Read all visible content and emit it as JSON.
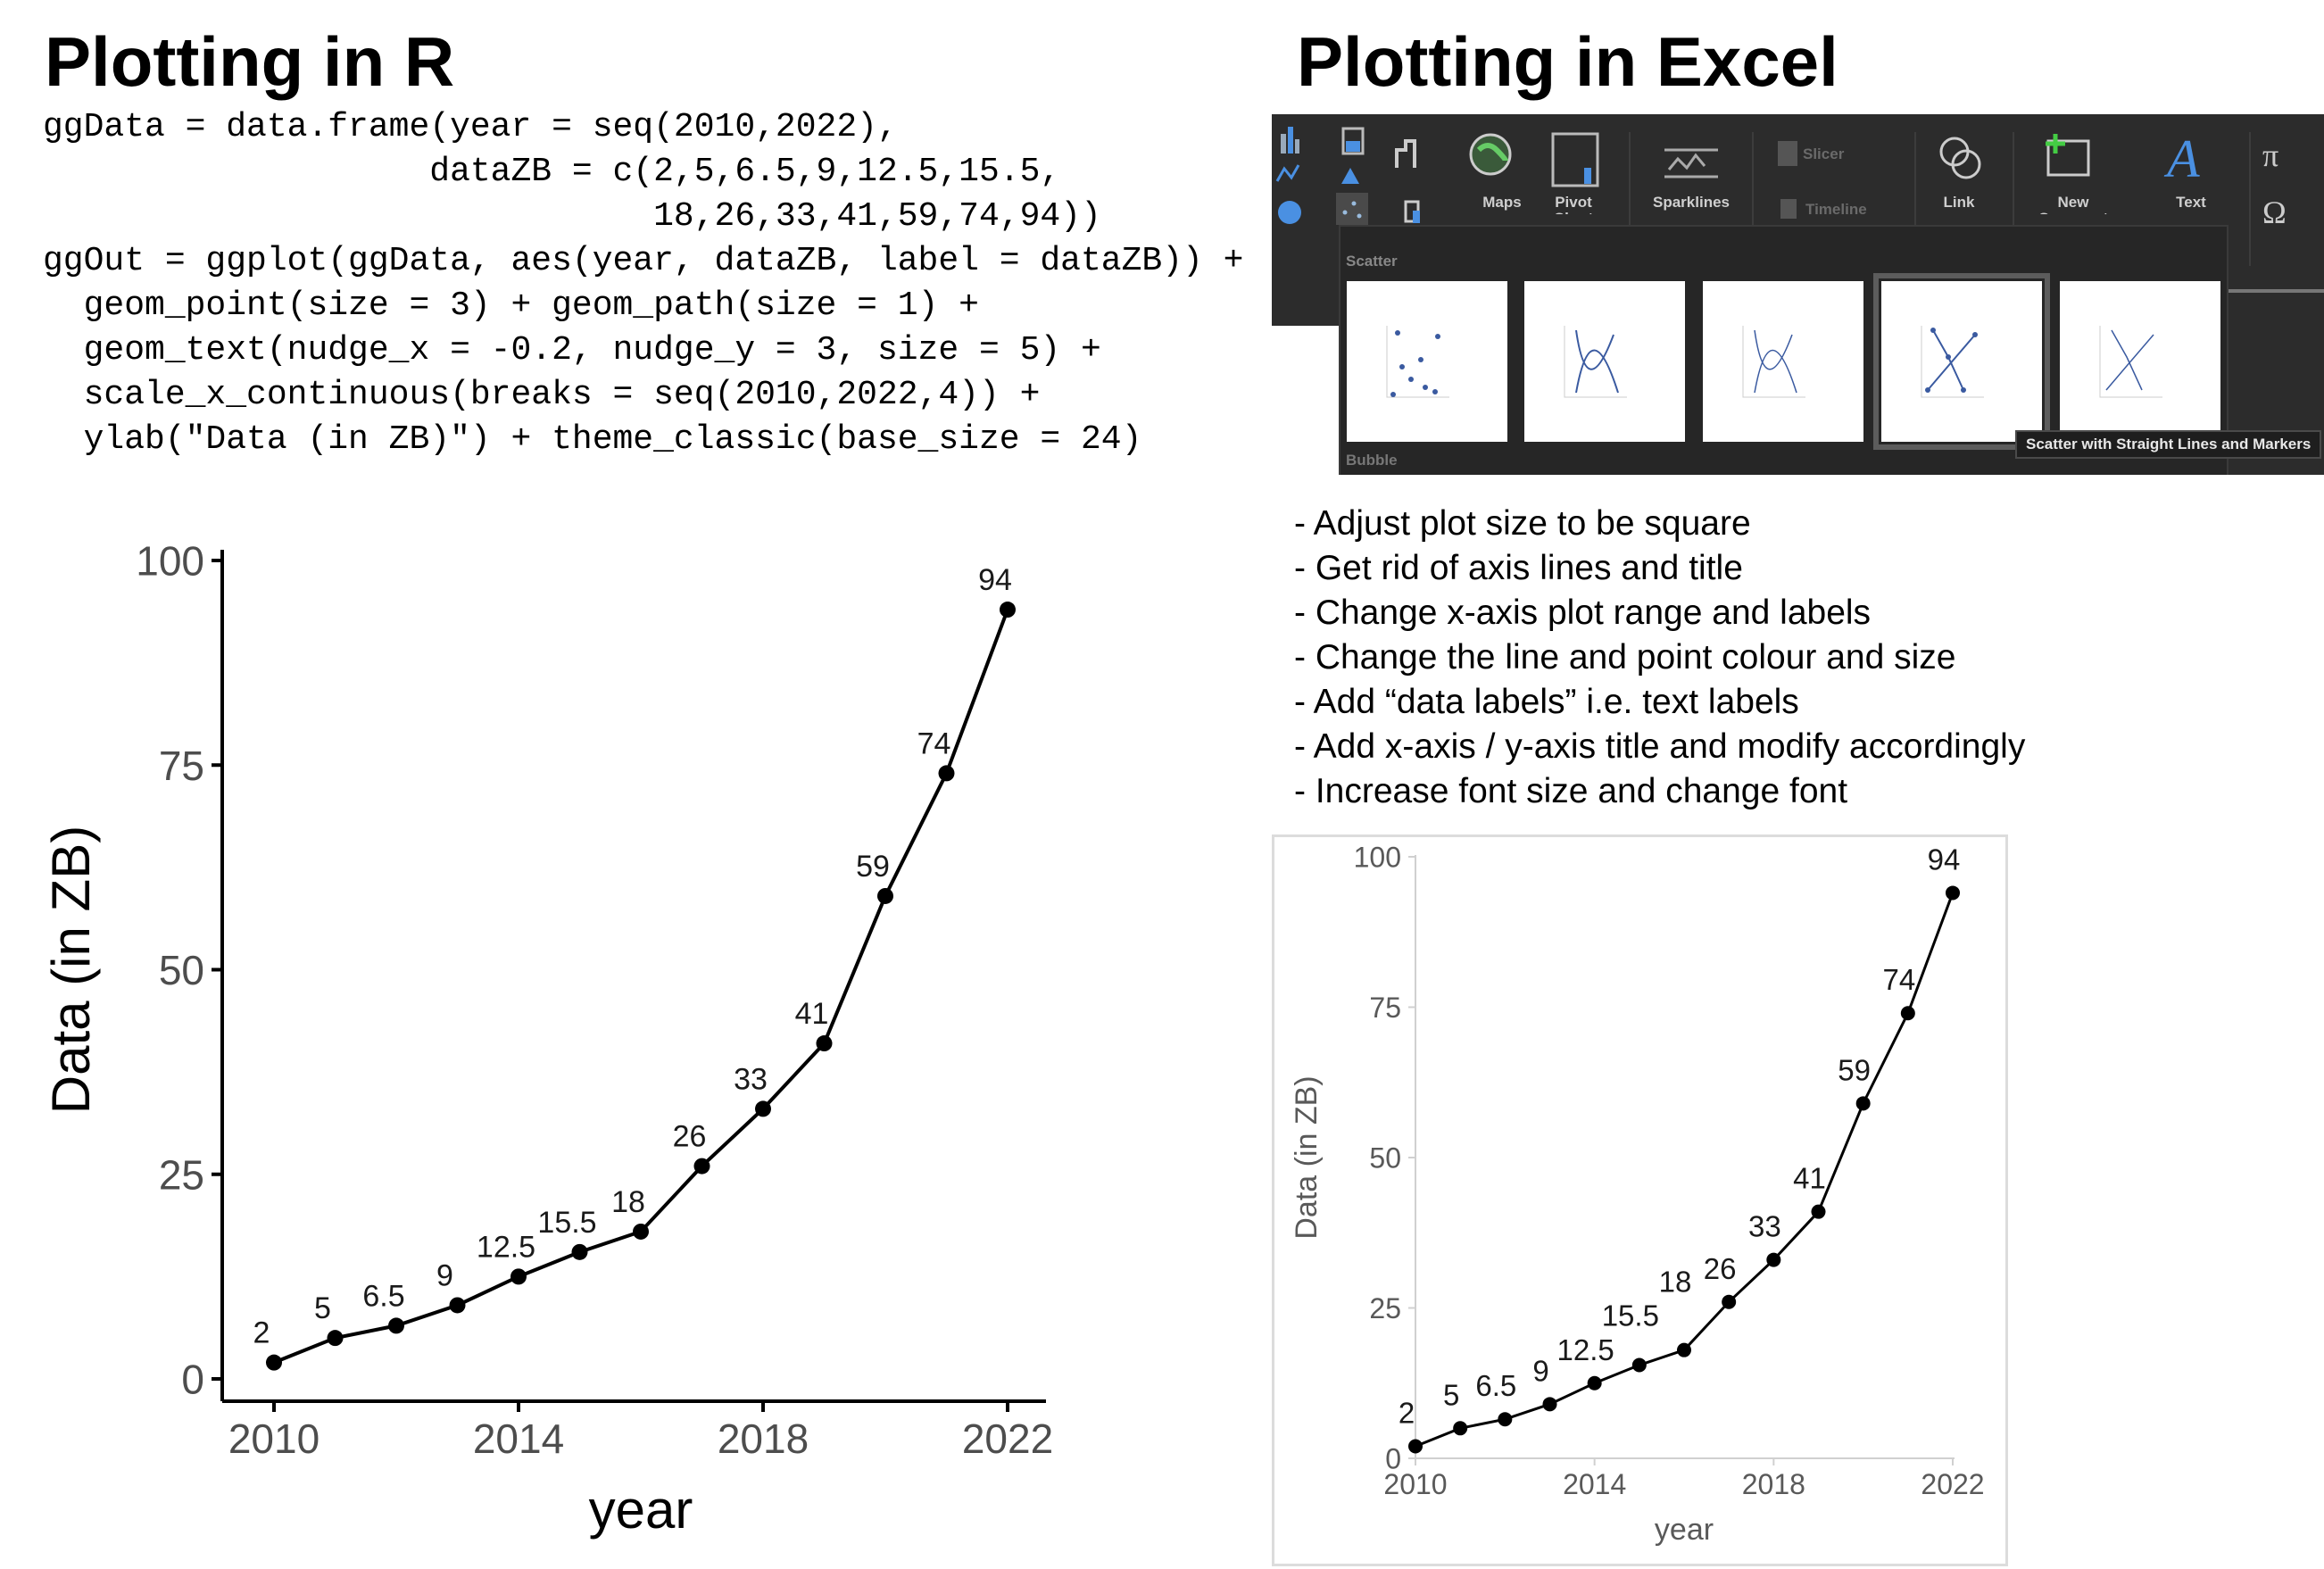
{
  "left": {
    "title": "Plotting in R",
    "code_lines": [
      "ggData = data.frame(year = seq(2010,2022),",
      "                   dataZB = c(2,5,6.5,9,12.5,15.5,",
      "                              18,26,33,41,59,74,94))",
      "ggOut = ggplot(ggData, aes(year, dataZB, label = dataZB)) +",
      "  geom_point(size = 3) + geom_path(size = 1) +",
      "  geom_text(nudge_x = -0.2, nudge_y = 3, size = 5) +",
      "  scale_x_continuous(breaks = seq(2010,2022,4)) +",
      "  ylab(\"Data (in ZB)\") + theme_classic(base_size = 24)"
    ]
  },
  "right": {
    "title": "Plotting in Excel",
    "ribbon": {
      "labels": {
        "maps": "Maps",
        "pivot_chart": "Pivot Chart",
        "sparklines": "Sparklines",
        "slicer": "Slicer",
        "timeline": "Timeline",
        "link": "Link",
        "new_comment": "New Comment",
        "text": "Text"
      },
      "dropdown": {
        "section_scatter": "Scatter",
        "section_bubble": "Bubble",
        "tooltip": "Scatter with Straight Lines and Markers",
        "selected_index": 3
      },
      "icons": [
        "column-chart-icon",
        "hierarchy-chart-icon",
        "waterfall-chart-icon",
        "maps-icon",
        "pivot-chart-icon",
        "line-chart-icon",
        "statistic-chart-icon",
        "pie-chart-icon",
        "scatter-chart-icon",
        "combo-chart-icon",
        "sparklines-icon",
        "slicer-icon",
        "timeline-icon",
        "link-icon",
        "new-comment-icon",
        "text-icon",
        "equation-icon",
        "symbol-icon"
      ],
      "accent": "#4a90e2"
    },
    "bullets": [
      "- Adjust plot size to be square",
      "- Get rid of axis lines and title",
      "- Change x-axis plot range and labels",
      "- Change the line and point colour and size",
      "- Add “data labels” i.e. text labels",
      "- Add x-axis / y-axis title and modify accordingly",
      "- Increase font size and change font"
    ]
  },
  "chart_data": [
    {
      "type": "line",
      "source": "R ggplot",
      "x": [
        2010,
        2011,
        2012,
        2013,
        2014,
        2015,
        2016,
        2017,
        2018,
        2019,
        2020,
        2021,
        2022
      ],
      "values": [
        2,
        5,
        6.5,
        9,
        12.5,
        15.5,
        18,
        26,
        33,
        41,
        59,
        74,
        94
      ],
      "data_labels": [
        "2",
        "5",
        "6.5",
        "9",
        "12.5",
        "15.5",
        "18",
        "26",
        "33",
        "41",
        "59",
        "74",
        "94"
      ],
      "xlabel": "year",
      "ylabel": "Data (in ZB)",
      "xticks": [
        "2010",
        "2014",
        "2018",
        "2022"
      ],
      "yticks": [
        "0",
        "25",
        "50",
        "75",
        "100"
      ],
      "xlim": [
        2010,
        2022
      ],
      "ylim": [
        0,
        100
      ],
      "grid": false,
      "markers": true,
      "color": "#000000"
    },
    {
      "type": "line",
      "source": "Excel",
      "x": [
        2010,
        2011,
        2012,
        2013,
        2014,
        2015,
        2016,
        2017,
        2018,
        2019,
        2020,
        2021,
        2022
      ],
      "values": [
        2,
        5,
        6.5,
        9,
        12.5,
        15.5,
        18,
        26,
        33,
        41,
        59,
        74,
        94
      ],
      "data_labels": [
        "2",
        "5",
        "6.5",
        "9",
        "12.5",
        "15.5",
        "18",
        "26",
        "33",
        "41",
        "59",
        "74",
        "94"
      ],
      "xlabel": "year",
      "ylabel": "Data (in ZB)",
      "xticks": [
        "2010",
        "2014",
        "2018",
        "2022"
      ],
      "yticks": [
        "0",
        "25",
        "50",
        "75",
        "100"
      ],
      "xlim": [
        2010,
        2022
      ],
      "ylim": [
        0,
        100
      ],
      "grid": false,
      "markers": true,
      "color": "#000000"
    }
  ]
}
